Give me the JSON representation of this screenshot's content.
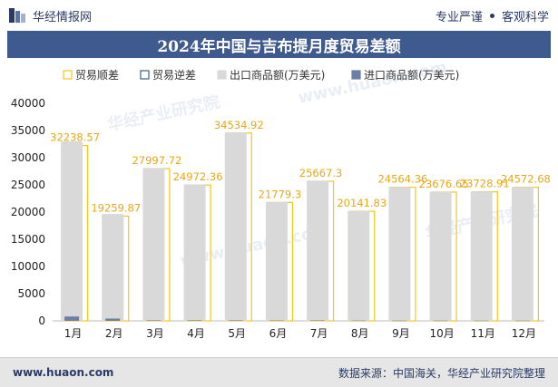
{
  "header": {
    "brand_name": "华经情报网",
    "tagline_left": "专业严谨",
    "tagline_right": "客观科学"
  },
  "title": "2024年中国与吉布提月度贸易差额",
  "legend": [
    {
      "key": "surplus",
      "label": "贸易顺差"
    },
    {
      "key": "deficit",
      "label": "贸易逆差"
    },
    {
      "key": "export",
      "label": "出口商品额(万美元)"
    },
    {
      "key": "import",
      "label": "进口商品额(万美元)"
    }
  ],
  "watermarks": [
    "华经产业研究院",
    "www.huaon.com"
  ],
  "footer": {
    "url": "www.huaon.com",
    "source": "数据来源：中国海关，华经产业研究院整理"
  },
  "colors": {
    "title_bg": "#3f5a8e",
    "brand_text": "#2b3a67",
    "surplus": "#f5c518",
    "deficit": "#3f5a8e",
    "export": "#d9d9d9",
    "import": "#6b7fa6",
    "data_label": "#e6a817"
  },
  "chart_data": {
    "type": "bar",
    "categories": [
      "1月",
      "2月",
      "3月",
      "4月",
      "5月",
      "6月",
      "7月",
      "8月",
      "9月",
      "10月",
      "11月",
      "12月"
    ],
    "series": [
      {
        "name": "贸易顺差",
        "values": [
          32238.57,
          19259.87,
          27997.72,
          24972.36,
          34534.92,
          21779.3,
          25667.3,
          20141.83,
          24564.36,
          23676.65,
          23728.91,
          24572.68
        ]
      },
      {
        "name": "贸易逆差",
        "values": [
          0,
          0,
          0,
          0,
          0,
          0,
          0,
          0,
          0,
          0,
          0,
          0
        ]
      },
      {
        "name": "出口商品额(万美元)",
        "values": [
          33000,
          19650,
          28100,
          25100,
          34640,
          21860,
          25750,
          20200,
          24620,
          23730,
          23780,
          24620
        ]
      },
      {
        "name": "进口商品额(万美元)",
        "values": [
          800,
          420,
          100,
          110,
          100,
          80,
          90,
          60,
          55,
          55,
          50,
          50
        ]
      }
    ],
    "data_labels": [
      "32238.57",
      "19259.87",
      "27997.72",
      "24972.36",
      "34534.92",
      "21779.3",
      "25667.3",
      "20141.83",
      "24564.36",
      "23676.65",
      "23728.91",
      "24572.68"
    ],
    "ylim": [
      0,
      40000
    ],
    "yticks": [
      0,
      5000,
      10000,
      15000,
      20000,
      25000,
      30000,
      35000,
      40000
    ],
    "ytick_labels": [
      "0",
      "5000",
      "10000",
      "15000",
      "20000",
      "25000",
      "30000",
      "35000",
      "40000"
    ],
    "grid": false,
    "legend_position": "top-right"
  }
}
